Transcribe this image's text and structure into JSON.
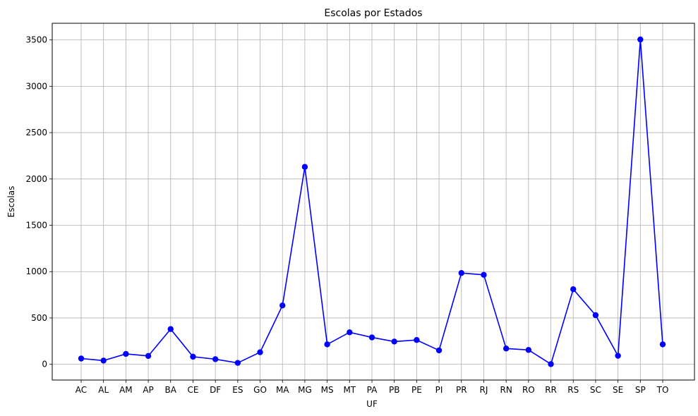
{
  "chart_data": {
    "type": "line",
    "title": "Escolas por Estados",
    "xlabel": "UF",
    "ylabel": "Escolas",
    "categories": [
      "AC",
      "AL",
      "AM",
      "AP",
      "BA",
      "CE",
      "DF",
      "ES",
      "GO",
      "MA",
      "MG",
      "MS",
      "MT",
      "PA",
      "PB",
      "PE",
      "PI",
      "PR",
      "RJ",
      "RN",
      "RO",
      "RR",
      "RS",
      "SC",
      "SE",
      "SP",
      "TO"
    ],
    "series": [
      {
        "values": [
          62,
          40,
          112,
          90,
          380,
          82,
          55,
          15,
          130,
          635,
          2130,
          215,
          345,
          290,
          245,
          262,
          150,
          985,
          965,
          170,
          155,
          2,
          810,
          530,
          92,
          3505,
          215
        ]
      }
    ],
    "ylim": [
      -170,
      3680
    ],
    "yticks": [
      0,
      500,
      1000,
      1500,
      2000,
      2500,
      3000,
      3500
    ],
    "grid": true,
    "line_color": "#0000ff",
    "marker": "circle"
  }
}
